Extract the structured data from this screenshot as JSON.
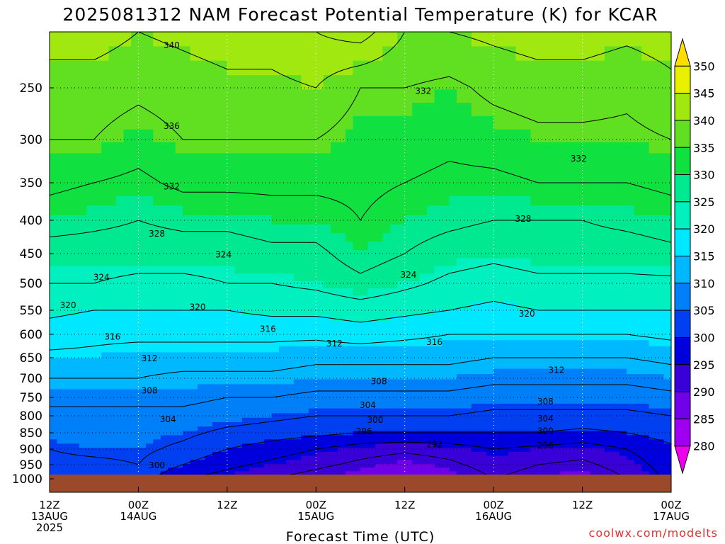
{
  "title": "2025081312 NAM Forecast Potential Temperature (K) for KCAR",
  "xlabel": "Forecast Time (UTC)",
  "credit": "coolwx.com/modelts",
  "colors": {
    "ground": "#9a4a2a",
    "contour": "#000000",
    "grid": "#000000"
  },
  "chart_data": {
    "type": "heatmap",
    "title": "2025081312 NAM Forecast Potential Temperature (K) for KCAR",
    "xlabel": "Forecast Time (UTC)",
    "ylabel": "",
    "x_ticks": [
      {
        "hours": 0,
        "line1": "12Z",
        "line2": "13AUG",
        "line3": "2025"
      },
      {
        "hours": 12,
        "line1": "00Z",
        "line2": "14AUG",
        "line3": ""
      },
      {
        "hours": 24,
        "line1": "12Z",
        "line2": "",
        "line3": ""
      },
      {
        "hours": 36,
        "line1": "00Z",
        "line2": "15AUG",
        "line3": ""
      },
      {
        "hours": 48,
        "line1": "12Z",
        "line2": "",
        "line3": ""
      },
      {
        "hours": 60,
        "line1": "00Z",
        "line2": "16AUG",
        "line3": ""
      },
      {
        "hours": 72,
        "line1": "12Z",
        "line2": "",
        "line3": ""
      },
      {
        "hours": 84,
        "line1": "00Z",
        "line2": "17AUG",
        "line3": ""
      }
    ],
    "x_range_hours": [
      0,
      84
    ],
    "y_ticks": [
      250,
      300,
      350,
      400,
      450,
      500,
      550,
      600,
      650,
      700,
      750,
      800,
      850,
      900,
      950,
      1000
    ],
    "y_range_hPa": [
      200,
      1000
    ],
    "grid": true,
    "colorbar": {
      "levels": [
        280,
        285,
        290,
        295,
        300,
        305,
        310,
        315,
        320,
        325,
        330,
        335,
        340,
        345,
        350
      ],
      "colors": [
        "#ee00ee",
        "#a000f0",
        "#7000e8",
        "#3a00d8",
        "#0000dd",
        "#0040f0",
        "#0080f8",
        "#00b8ff",
        "#00e8ff",
        "#00f0c0",
        "#00e890",
        "#10e040",
        "#60e020",
        "#a0e810",
        "#e8f000",
        "#ffdd00"
      ],
      "position": "right"
    },
    "contour_interval": 4,
    "contour_levels": [
      292,
      296,
      300,
      304,
      308,
      312,
      316,
      320,
      324,
      328,
      332,
      336,
      340,
      344,
      348
    ],
    "profile_levels_hPa": [
      1000,
      950,
      900,
      850,
      800,
      750,
      700,
      650,
      600,
      550,
      500,
      450,
      400,
      350,
      300,
      250,
      200
    ],
    "theta_profiles": [
      {
        "hours": 0,
        "theta": [
          302,
          303,
          304,
          306,
          307,
          309,
          312,
          315,
          318,
          321,
          324,
          326,
          330,
          333,
          336,
          338,
          342
        ]
      },
      {
        "hours": 6,
        "theta": [
          300,
          303,
          305,
          306,
          307,
          309,
          312,
          315,
          317,
          320,
          324,
          326,
          329,
          332,
          336,
          338,
          342
        ]
      },
      {
        "hours": 12,
        "theta": [
          302,
          304,
          305,
          306,
          307,
          309,
          312,
          314,
          317,
          320,
          323,
          326,
          328,
          331,
          334,
          337,
          340
        ]
      },
      {
        "hours": 18,
        "theta": [
          296,
          300,
          303,
          305,
          307,
          309,
          311,
          314,
          317,
          320,
          323,
          326,
          329,
          333,
          336,
          338,
          341
        ]
      },
      {
        "hours": 24,
        "theta": [
          294,
          297,
          300,
          303,
          306,
          308,
          311,
          314,
          317,
          320,
          324,
          326,
          329,
          333,
          336,
          339,
          342
        ]
      },
      {
        "hours": 30,
        "theta": [
          292,
          295,
          298,
          302,
          305,
          308,
          311,
          314,
          317,
          321,
          324,
          327,
          330,
          333,
          336,
          339,
          342
        ]
      },
      {
        "hours": 36,
        "theta": [
          290,
          293,
          296,
          301,
          304,
          307,
          310,
          313,
          317,
          321,
          325,
          327,
          330,
          333,
          336,
          340,
          344
        ]
      },
      {
        "hours": 42,
        "theta": [
          288,
          291,
          294,
          300,
          304,
          307,
          310,
          313,
          318,
          322,
          327,
          330,
          332,
          333,
          334,
          336,
          346
        ]
      },
      {
        "hours": 48,
        "theta": [
          286,
          289,
          293,
          300,
          304,
          307,
          310,
          313,
          317,
          321,
          325,
          328,
          330,
          332,
          334,
          336,
          340
        ]
      },
      {
        "hours": 54,
        "theta": [
          288,
          291,
          294,
          300,
          304,
          307,
          310,
          313,
          316,
          320,
          323,
          326,
          329,
          331,
          333,
          335,
          340
        ]
      },
      {
        "hours": 60,
        "theta": [
          292,
          294,
          296,
          300,
          303,
          306,
          309,
          312,
          316,
          319,
          322,
          325,
          328,
          331,
          334,
          337,
          341
        ]
      },
      {
        "hours": 66,
        "theta": [
          290,
          292,
          295,
          300,
          303,
          306,
          309,
          312,
          316,
          320,
          323,
          326,
          328,
          332,
          335,
          338,
          342
        ]
      },
      {
        "hours": 72,
        "theta": [
          288,
          291,
          294,
          299,
          303,
          306,
          309,
          312,
          316,
          320,
          323,
          326,
          328,
          332,
          335,
          338,
          342
        ]
      },
      {
        "hours": 78,
        "theta": [
          292,
          294,
          296,
          300,
          303,
          306,
          309,
          312,
          316,
          320,
          323,
          326,
          329,
          332,
          335,
          337,
          341
        ]
      },
      {
        "hours": 84,
        "theta": [
          297,
          298,
          299,
          302,
          304,
          307,
          310,
          313,
          317,
          320,
          323,
          327,
          330,
          333,
          336,
          339,
          342
        ]
      }
    ],
    "contour_labels": [
      {
        "text": "340",
        "hours": 16.5,
        "hPa": 212
      },
      {
        "text": "336",
        "hours": 16.5,
        "hPa": 287
      },
      {
        "text": "332",
        "hours": 16.5,
        "hPa": 355
      },
      {
        "text": "328",
        "hours": 14.5,
        "hPa": 420
      },
      {
        "text": "324",
        "hours": 23.5,
        "hPa": 452
      },
      {
        "text": "324",
        "hours": 7,
        "hPa": 490
      },
      {
        "text": "320",
        "hours": 2.5,
        "hPa": 541
      },
      {
        "text": "320",
        "hours": 20,
        "hPa": 544
      },
      {
        "text": "316",
        "hours": 8.5,
        "hPa": 605
      },
      {
        "text": "316",
        "hours": 29.5,
        "hPa": 589
      },
      {
        "text": "312",
        "hours": 13.5,
        "hPa": 652
      },
      {
        "text": "312",
        "hours": 38.5,
        "hPa": 620
      },
      {
        "text": "308",
        "hours": 13.5,
        "hPa": 732
      },
      {
        "text": "304",
        "hours": 16,
        "hPa": 810
      },
      {
        "text": "300",
        "hours": 14.5,
        "hPa": 953
      },
      {
        "text": "332",
        "hours": 50.5,
        "hPa": 253
      },
      {
        "text": "332",
        "hours": 71.5,
        "hPa": 322
      },
      {
        "text": "328",
        "hours": 64,
        "hPa": 398
      },
      {
        "text": "324",
        "hours": 48.5,
        "hPa": 486
      },
      {
        "text": "320",
        "hours": 64.5,
        "hPa": 557
      },
      {
        "text": "316",
        "hours": 52,
        "hPa": 617
      },
      {
        "text": "312",
        "hours": 68.5,
        "hPa": 680
      },
      {
        "text": "308",
        "hours": 44.5,
        "hPa": 708
      },
      {
        "text": "308",
        "hours": 67,
        "hPa": 762
      },
      {
        "text": "304",
        "hours": 43,
        "hPa": 771
      },
      {
        "text": "304",
        "hours": 67,
        "hPa": 808
      },
      {
        "text": "300",
        "hours": 44,
        "hPa": 813
      },
      {
        "text": "300",
        "hours": 67,
        "hPa": 845
      },
      {
        "text": "296",
        "hours": 42.5,
        "hPa": 846
      },
      {
        "text": "296",
        "hours": 67,
        "hPa": 889
      },
      {
        "text": "292",
        "hours": 52,
        "hPa": 886
      }
    ]
  }
}
